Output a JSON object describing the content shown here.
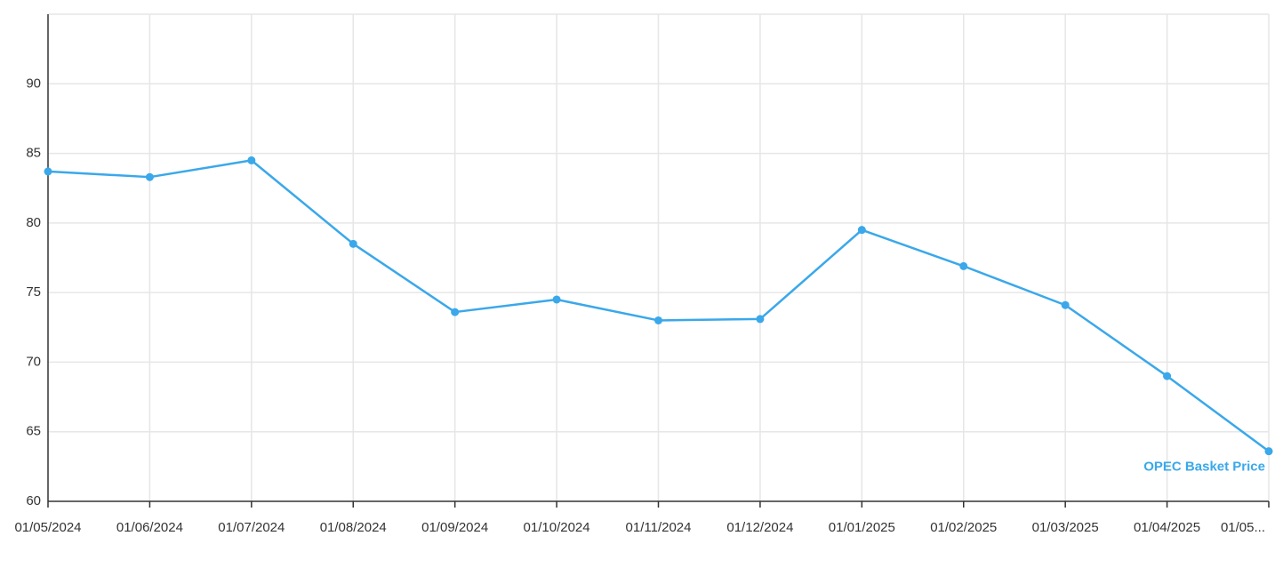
{
  "chart_data": {
    "type": "line",
    "title": "",
    "xlabel": "",
    "ylabel": "",
    "x": [
      "01/05/2024",
      "01/06/2024",
      "01/07/2024",
      "01/08/2024",
      "01/09/2024",
      "01/10/2024",
      "01/11/2024",
      "01/12/2024",
      "01/01/2025",
      "01/02/2025",
      "01/03/2025",
      "01/04/2025",
      "01/05..."
    ],
    "ylim": [
      60,
      95
    ],
    "yticks": [
      60,
      65,
      70,
      75,
      80,
      85,
      90
    ],
    "grid": true,
    "series": [
      {
        "name": "OPEC Basket Price",
        "color": "#3aa8ea",
        "values": [
          83.7,
          83.3,
          84.5,
          78.5,
          73.6,
          74.5,
          73.0,
          73.1,
          79.5,
          76.9,
          74.1,
          69.0,
          63.6
        ]
      }
    ]
  }
}
